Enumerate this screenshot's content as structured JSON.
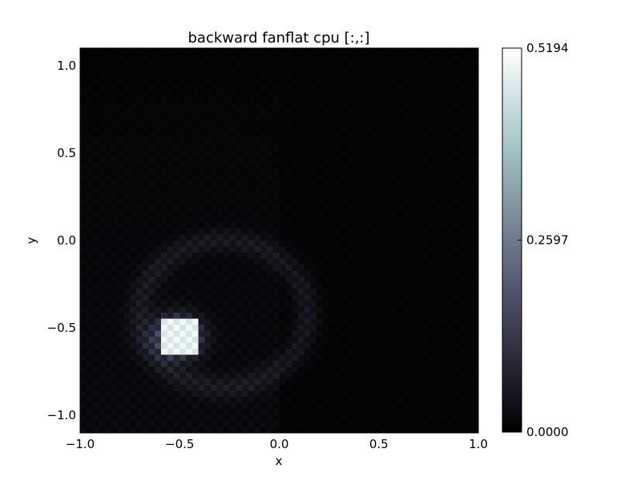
{
  "chart_data": {
    "type": "heatmap",
    "title": "backward fanflat cpu [:,:]",
    "xlabel": "x",
    "ylabel": "y",
    "xlim": [
      -1.0,
      1.0
    ],
    "ylim": [
      -1.1,
      1.1
    ],
    "x_ticks": [
      {
        "value": -1.0,
        "label": "−1.0"
      },
      {
        "value": -0.5,
        "label": "−0.5"
      },
      {
        "value": 0.0,
        "label": "0.0"
      },
      {
        "value": 0.5,
        "label": "0.5"
      },
      {
        "value": 1.0,
        "label": "1.0"
      }
    ],
    "y_ticks": [
      {
        "value": 1.0,
        "label": "1.0"
      },
      {
        "value": 0.5,
        "label": "0.5"
      },
      {
        "value": 0.0,
        "label": "0.0"
      },
      {
        "value": -0.5,
        "label": "−0.5"
      },
      {
        "value": -1.0,
        "label": "−1.0"
      }
    ],
    "colormap": "bone",
    "colorbar": {
      "min": 0.0,
      "max": 0.5194,
      "ticks": [
        {
          "value": 0.5194,
          "label": "0.5194"
        },
        {
          "value": 0.2597,
          "label": "0.2597"
        },
        {
          "value": 0.0,
          "label": "0.0000"
        }
      ]
    },
    "grid": false,
    "features": {
      "bright_square": {
        "x_range": [
          -0.6,
          -0.42
        ],
        "y_range": [
          -0.67,
          -0.43
        ],
        "value": 0.5
      },
      "arc": {
        "center": [
          -0.28,
          -0.42
        ],
        "radius": 0.42
      }
    }
  }
}
